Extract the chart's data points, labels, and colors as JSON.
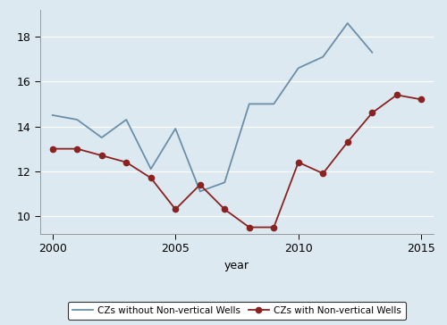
{
  "years": [
    2000,
    2001,
    2002,
    2003,
    2004,
    2005,
    2006,
    2007,
    2008,
    2009,
    2010,
    2011,
    2012,
    2013,
    2014,
    2015
  ],
  "line1_values": [
    14.5,
    14.3,
    13.5,
    14.3,
    12.1,
    13.9,
    11.1,
    11.5,
    15.0,
    15.0,
    16.6,
    17.1,
    18.6,
    17.3,
    null,
    null
  ],
  "line2_values": [
    13.0,
    13.0,
    12.7,
    12.4,
    11.7,
    10.3,
    11.4,
    10.3,
    9.5,
    9.5,
    12.4,
    11.9,
    13.3,
    14.6,
    15.4,
    15.2
  ],
  "line1_label": "CZs without Non-vertical Wells",
  "line2_label": "CZs with Non-vertical Wells",
  "line1_color": "#6b8fa8",
  "line2_color": "#8b2222",
  "xlabel": "year",
  "ylim": [
    9.2,
    19.2
  ],
  "xlim": [
    1999.5,
    2015.5
  ],
  "yticks": [
    10,
    12,
    14,
    16,
    18
  ],
  "xticks": [
    2000,
    2005,
    2010,
    2015
  ],
  "background_color": "#dce9f0",
  "plot_bg_color": "#dce9f0",
  "grid_color": "#ffffff",
  "legend_fontsize": 7.5,
  "axis_fontsize": 9,
  "tick_fontsize": 9
}
